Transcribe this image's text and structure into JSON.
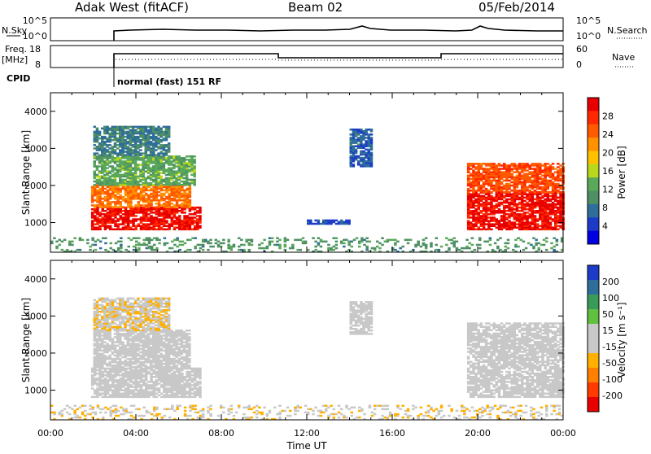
{
  "header": {
    "station": "Adak West (fitACF)",
    "beam": "Beam 02",
    "date": "05/Feb/2014"
  },
  "top_panels": {
    "nsky_label": "N.Sky",
    "nsky_ticks": [
      "10^5",
      "10^0"
    ],
    "nsearch_label": "N.Search",
    "nsearch_ticks": [
      "10^5",
      "10^0"
    ],
    "freq_label_1": "Freq.",
    "freq_label_2": "[MHz]",
    "freq_ticks": [
      "18",
      "8"
    ],
    "nave_label": "Nave",
    "nave_ticks": [
      "60",
      "0"
    ],
    "cpid_label": "CPID",
    "cpid_text": "normal (fast) 151 RF"
  },
  "colors": {
    "power_scale": [
      "#0000e0",
      "#1c3cc8",
      "#2f6e9a",
      "#4e8f64",
      "#5aa85a",
      "#b8d81c",
      "#ffc000",
      "#ff9000",
      "#ff5a00",
      "#ff2800",
      "#e80000"
    ],
    "velocity_scale": [
      "#e80000",
      "#ff3a00",
      "#ff8000",
      "#ffb000",
      "#c8c8c8",
      "#c8c8c8",
      "#60c040",
      "#3a9a5a",
      "#2f6e9a",
      "#1c3cc8"
    ]
  },
  "chart_data": [
    {
      "type": "heatmap",
      "panel": "power",
      "ylabel": "Slant Range [km]",
      "yticks": [
        "4000",
        "3000",
        "2000",
        "1000"
      ],
      "ylim": [
        200,
        4500
      ],
      "xlim": [
        0,
        24
      ],
      "colorbar_label": "Power [dB]",
      "colorbar_ticks": [
        "28",
        "24",
        "20",
        "16",
        "12",
        "8",
        "4"
      ],
      "colorbar_range": [
        0,
        30
      ],
      "regions": [
        {
          "t0": 1.9,
          "t1": 7.0,
          "r0": 800,
          "r1": 1400,
          "value": 28
        },
        {
          "t0": 1.9,
          "t1": 6.5,
          "r0": 1400,
          "r1": 2000,
          "value": 22
        },
        {
          "t0": 2.0,
          "t1": 6.8,
          "r0": 2000,
          "r1": 2800,
          "value": 12
        },
        {
          "t0": 2.0,
          "t1": 5.5,
          "r0": 2800,
          "r1": 3600,
          "value": 8
        },
        {
          "t0": 12.0,
          "t1": 14.0,
          "r0": 950,
          "r1": 1050,
          "value": 5
        },
        {
          "t0": 14.0,
          "t1": 15.0,
          "r0": 2500,
          "r1": 3500,
          "value": 6
        },
        {
          "t0": 19.5,
          "t1": 24.0,
          "r0": 800,
          "r1": 1800,
          "value": 28
        },
        {
          "t0": 19.5,
          "t1": 24.0,
          "r0": 1800,
          "r1": 2600,
          "value": 24
        },
        {
          "t0": 0.0,
          "t1": 24.0,
          "r0": 200,
          "r1": 600,
          "value": 10
        }
      ]
    },
    {
      "type": "heatmap",
      "panel": "velocity",
      "ylabel": "Slant Range [km]",
      "yticks": [
        "4000",
        "3000",
        "2000",
        "1000"
      ],
      "ylim": [
        200,
        4500
      ],
      "xlim": [
        0,
        24
      ],
      "xticks": [
        "00:00",
        "04:00",
        "08:00",
        "12:00",
        "16:00",
        "20:00",
        "00:00"
      ],
      "xlabel": "Time UT",
      "colorbar_label": "Velocity [m s⁻¹]",
      "colorbar_ticks": [
        "200",
        "100",
        "50",
        "15",
        "-15",
        "-50",
        "-100",
        "-200"
      ],
      "colorbar_range": [
        -250,
        250
      ],
      "regions": [
        {
          "t0": 1.9,
          "t1": 7.0,
          "r0": 800,
          "r1": 1600,
          "value": 0
        },
        {
          "t0": 2.0,
          "t1": 6.5,
          "r0": 1600,
          "r1": 2600,
          "value": 0
        },
        {
          "t0": 2.0,
          "t1": 5.5,
          "r0": 2600,
          "r1": 3500,
          "value": -40
        },
        {
          "t0": 14.0,
          "t1": 15.0,
          "r0": 2500,
          "r1": 3400,
          "value": 0
        },
        {
          "t0": 19.5,
          "t1": 24.0,
          "r0": 800,
          "r1": 2800,
          "value": 0
        },
        {
          "t0": 0.0,
          "t1": 24.0,
          "r0": 200,
          "r1": 600,
          "value": -40
        }
      ]
    }
  ]
}
